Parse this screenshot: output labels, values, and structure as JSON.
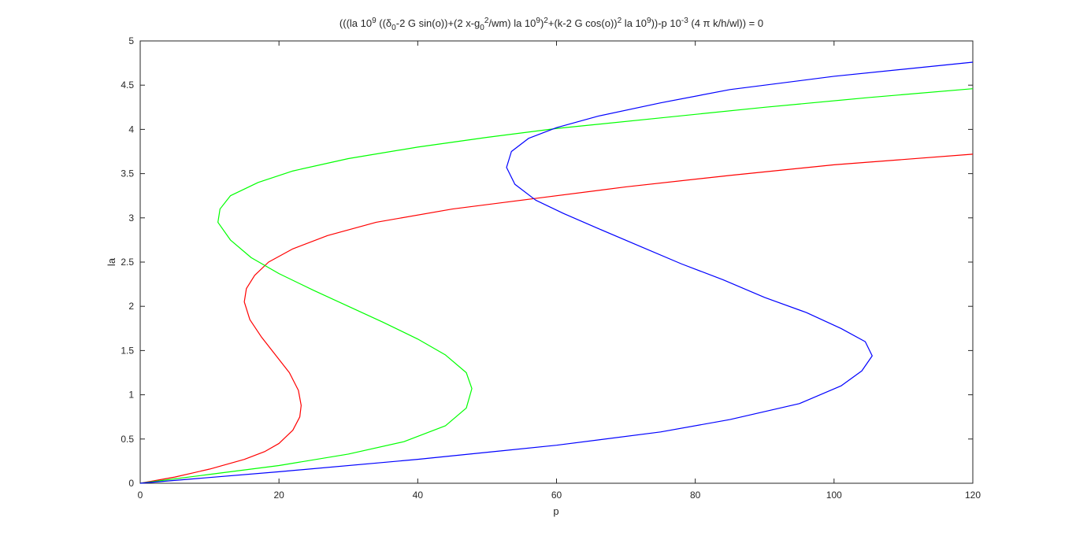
{
  "chart_data": {
    "type": "line",
    "title": [
      "(((la 10",
      {
        "text": "9",
        "shift": "sup"
      },
      " ((δ",
      {
        "text": "0",
        "shift": "sub"
      },
      "-2 G sin(o))+(2 x-g",
      {
        "text": "0",
        "shift": "sub"
      },
      {
        "text": "2",
        "shift": "sup"
      },
      "/wm) la 10",
      {
        "text": "9",
        "shift": "sup"
      },
      ")",
      {
        "text": "2",
        "shift": "sup"
      },
      "+(k-2 G cos(o))",
      {
        "text": "2",
        "shift": "sup"
      },
      " la 10",
      {
        "text": "9",
        "shift": "sup"
      },
      "))-p 10",
      {
        "text": "-3",
        "shift": "sup"
      },
      " (4 π k/h/wl)) = 0"
    ],
    "x_label": "p",
    "y_label": "la",
    "xlim": [
      0,
      120
    ],
    "ylim": [
      0,
      5
    ],
    "xticks": [
      0,
      20,
      40,
      60,
      80,
      100,
      120
    ],
    "yticks": [
      0,
      0.5,
      1,
      1.5,
      2,
      2.5,
      3,
      3.5,
      4,
      4.5,
      5
    ],
    "grid": false,
    "series": [
      {
        "color": "#ff0000",
        "x": [
          0,
          5,
          10,
          15,
          18,
          20,
          22,
          23,
          23.2,
          22.8,
          21.5,
          19.5,
          17.5,
          15.8,
          15,
          15.3,
          16.5,
          18.5,
          22,
          27,
          34,
          45,
          57,
          70,
          85,
          100,
          120
        ],
        "values": [
          0,
          0.07,
          0.16,
          0.27,
          0.36,
          0.45,
          0.6,
          0.75,
          0.88,
          1.05,
          1.25,
          1.45,
          1.65,
          1.85,
          2.05,
          2.2,
          2.35,
          2.5,
          2.65,
          2.8,
          2.95,
          3.1,
          3.22,
          3.35,
          3.48,
          3.6,
          3.72
        ]
      },
      {
        "color": "#00ff00",
        "x": [
          0,
          10,
          20,
          30,
          38,
          44,
          47,
          47.8,
          47,
          44,
          40,
          35,
          30,
          25,
          20,
          16,
          13,
          11.2,
          11.5,
          13,
          17,
          22,
          30,
          40,
          50,
          60,
          75,
          90,
          105,
          120
        ],
        "values": [
          0,
          0.1,
          0.2,
          0.33,
          0.47,
          0.65,
          0.85,
          1.07,
          1.25,
          1.45,
          1.63,
          1.82,
          2.0,
          2.18,
          2.37,
          2.55,
          2.75,
          2.95,
          3.1,
          3.25,
          3.4,
          3.53,
          3.67,
          3.8,
          3.91,
          4.01,
          4.13,
          4.25,
          4.36,
          4.46
        ]
      },
      {
        "color": "#0000ff",
        "x": [
          0,
          20,
          40,
          60,
          75,
          85,
          95,
          101,
          104,
          105.5,
          104.5,
          101,
          96,
          90,
          84,
          78,
          72,
          66,
          61,
          57,
          54,
          52.8,
          53.5,
          56,
          60,
          66,
          75,
          85,
          100,
          120
        ],
        "values": [
          0,
          0.13,
          0.27,
          0.43,
          0.58,
          0.72,
          0.9,
          1.1,
          1.27,
          1.44,
          1.6,
          1.75,
          1.93,
          2.1,
          2.3,
          2.48,
          2.68,
          2.88,
          3.05,
          3.2,
          3.38,
          3.57,
          3.75,
          3.9,
          4.02,
          4.15,
          4.3,
          4.45,
          4.6,
          4.76
        ]
      }
    ]
  }
}
